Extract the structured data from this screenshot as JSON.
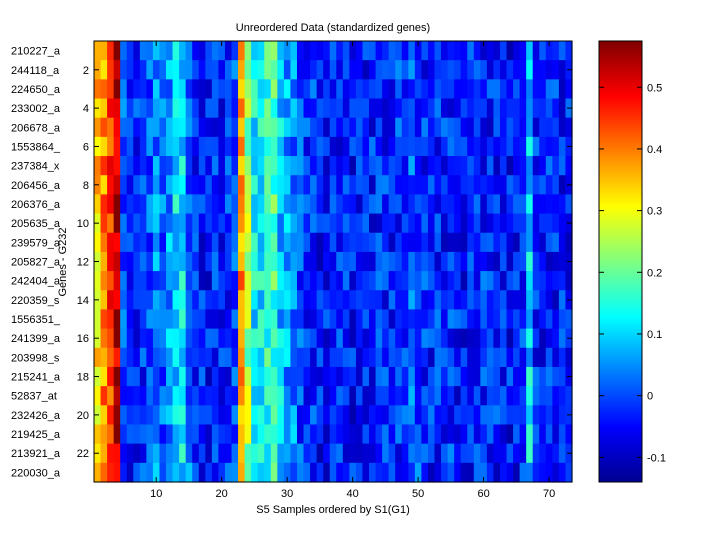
{
  "chart_data": {
    "type": "heatmap",
    "title": "Unreordered Data (standardized genes)",
    "xlabel": "S5 Samples ordered by S1(G1)",
    "ylabel": "Genes - G232",
    "n_rows": 23,
    "n_cols": 73,
    "x_ticks": [
      10,
      20,
      30,
      40,
      50,
      60,
      70
    ],
    "y_ticks": [
      2,
      4,
      6,
      8,
      10,
      12,
      14,
      16,
      18,
      20,
      22
    ],
    "row_labels": [
      "210227_a",
      "244118_a",
      "224650_a",
      "233002_a",
      "206678_a",
      "1553864_",
      "237384_x",
      "206456_a",
      "206376_a",
      "205635_a",
      "239579_a",
      "205827_a",
      "242404_a",
      "220359_s",
      "1556351_",
      "241399_a",
      "203998_s",
      "215241_a",
      "52837_at",
      "232426_a",
      "219425_a",
      "213921_a",
      "220030_a"
    ],
    "colorbar": {
      "colormap": "jet",
      "range": [
        -0.14,
        0.575
      ],
      "ticks": [
        -0.1,
        0,
        0.1,
        0.2,
        0.3,
        0.4,
        0.5
      ],
      "tick_labels": [
        "-0.1",
        "0",
        "0.1",
        "0.2",
        "0.3",
        "0.4",
        "0.5"
      ]
    },
    "column_profile": {
      "1": 0.34,
      "2": 0.39,
      "3": 0.44,
      "4": 0.53,
      "5": 0.0,
      "6": -0.04,
      "7": -0.03,
      "8": -0.02,
      "9": 0.0,
      "10": 0.04,
      "11": 0.02,
      "12": 0.06,
      "13": 0.11,
      "14": 0.12,
      "15": 0.03,
      "16": -0.02,
      "17": -0.03,
      "18": -0.04,
      "19": -0.02,
      "20": -0.03,
      "21": -0.02,
      "22": -0.01,
      "23": 0.37,
      "24": 0.24,
      "25": 0.12,
      "26": 0.12,
      "27": 0.16,
      "28": 0.18,
      "29": 0.09,
      "30": 0.06,
      "31": 0.04,
      "32": 0.0,
      "33": -0.02,
      "34": -0.02,
      "35": -0.04,
      "36": -0.04,
      "37": -0.04,
      "38": -0.03,
      "39": -0.03,
      "40": -0.04,
      "41": -0.04,
      "42": -0.03,
      "43": -0.03,
      "44": -0.02,
      "45": -0.03,
      "46": -0.03,
      "47": -0.02,
      "48": 0.0,
      "49": 0.01,
      "50": 0.0,
      "51": -0.02,
      "52": -0.03,
      "53": -0.02,
      "54": -0.03,
      "55": -0.02,
      "56": -0.03,
      "57": -0.04,
      "58": -0.03,
      "59": -0.03,
      "60": -0.02,
      "61": -0.03,
      "62": -0.03,
      "63": -0.03,
      "64": -0.04,
      "65": -0.04,
      "66": -0.02,
      "67": 0.1,
      "68": -0.03,
      "69": -0.03,
      "70": -0.03,
      "71": -0.03,
      "72": -0.03,
      "73": -0.04
    },
    "noise_amplitude": 0.07
  }
}
